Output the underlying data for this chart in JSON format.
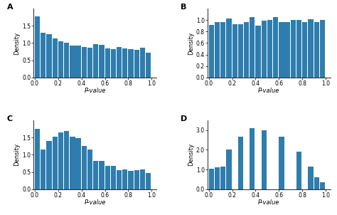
{
  "bar_color": "#2e7dae",
  "panel_labels": [
    "A",
    "B",
    "C",
    "D"
  ],
  "A_values": [
    1.78,
    1.3,
    1.25,
    1.13,
    1.05,
    1.02,
    0.93,
    0.93,
    0.88,
    0.86,
    0.97,
    0.94,
    0.85,
    0.83,
    0.88,
    0.85,
    0.82,
    0.8,
    0.86,
    0.72
  ],
  "B_values": [
    0.92,
    0.97,
    0.97,
    1.03,
    0.93,
    0.93,
    0.97,
    1.05,
    0.9,
    0.99,
    1.0,
    1.05,
    0.97,
    0.97,
    1.0,
    1.0,
    0.96,
    1.02,
    0.97,
    1.0
  ],
  "C_values": [
    1.75,
    1.15,
    1.4,
    1.52,
    1.65,
    1.68,
    1.52,
    1.48,
    1.25,
    1.15,
    0.83,
    0.82,
    0.68,
    0.67,
    0.55,
    0.57,
    0.53,
    0.55,
    0.57,
    0.47
  ],
  "D_values": [
    1.05,
    1.1,
    1.15,
    2.0,
    0.0,
    2.65,
    0.0,
    3.1,
    0.0,
    3.0,
    0.0,
    0.0,
    2.65,
    0.0,
    0.0,
    1.9,
    0.0,
    1.15,
    0.6,
    0.35
  ],
  "A_ylim": [
    0,
    2.0
  ],
  "B_ylim": [
    0,
    1.2
  ],
  "C_ylim": [
    0,
    2.0
  ],
  "D_ylim": [
    0,
    3.5
  ],
  "A_yticks": [
    0.0,
    0.5,
    1.0,
    1.5
  ],
  "B_yticks": [
    0.0,
    0.2,
    0.4,
    0.6,
    0.8,
    1.0
  ],
  "C_yticks": [
    0.0,
    0.5,
    1.0,
    1.5
  ],
  "D_yticks": [
    0.0,
    1.0,
    2.0,
    3.0
  ],
  "xlabel": "P-value",
  "ylabel": "Density",
  "xticks": [
    0.0,
    0.2,
    0.4,
    0.6,
    0.8,
    1.0
  ],
  "xtick_labels": [
    "0.0",
    "0.2",
    "0.4",
    "0.6",
    "0.8",
    "1.0"
  ],
  "n_bins": 20,
  "bin_width": 0.05
}
